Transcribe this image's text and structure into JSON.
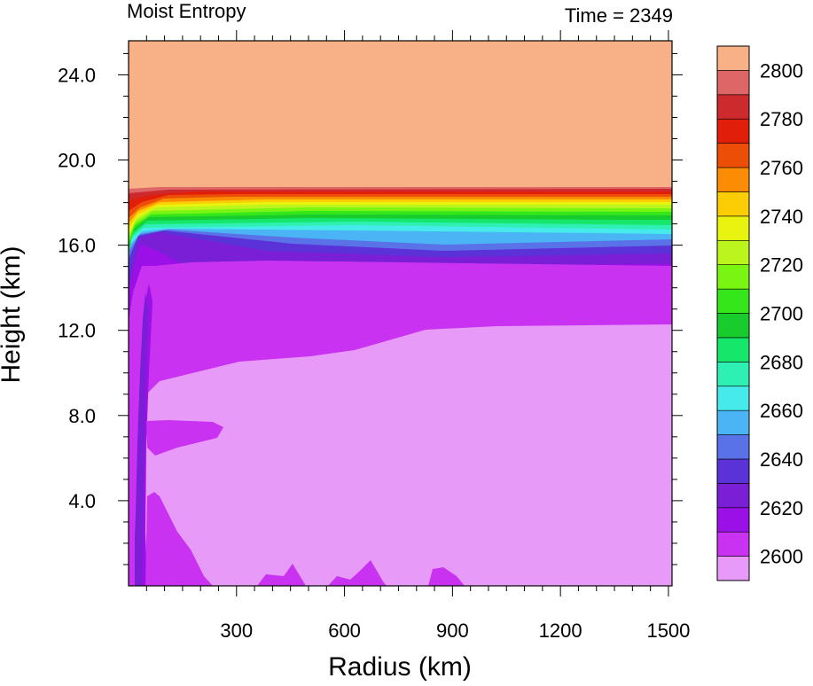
{
  "chart_data": {
    "type": "heatmap",
    "title_left": "Moist Entropy",
    "title_right": "Time = 2349",
    "xlabel": "Radius (km)",
    "ylabel": "Height (km)",
    "xlim": [
      0,
      1510
    ],
    "ylim": [
      0,
      25.6
    ],
    "x_ticks": [
      300,
      600,
      900,
      1200,
      1500
    ],
    "x_tick_labels": [
      "300",
      "600",
      "900",
      "1200",
      "1500"
    ],
    "y_ticks": [
      4,
      8,
      12,
      16,
      20,
      24
    ],
    "y_tick_labels": [
      "4.0",
      "8.0",
      "12.0",
      "16.0",
      "20.0",
      "24.0"
    ],
    "colorbar": {
      "levels": [
        2600,
        2610,
        2620,
        2630,
        2640,
        2650,
        2660,
        2670,
        2680,
        2690,
        2700,
        2710,
        2720,
        2730,
        2740,
        2750,
        2760,
        2770,
        2780,
        2790,
        2800,
        2810
      ],
      "tick_labels": [
        "2600",
        "2620",
        "2640",
        "2660",
        "2680",
        "2700",
        "2720",
        "2740",
        "2760",
        "2780",
        "2800"
      ],
      "tick_values": [
        2600,
        2620,
        2640,
        2660,
        2680,
        2700,
        2720,
        2740,
        2760,
        2780,
        2800
      ],
      "colors": [
        "#e89af8",
        "#c832f0",
        "#9a10e6",
        "#7a1fd6",
        "#5a32d8",
        "#5a72e8",
        "#4ab4f4",
        "#46eaea",
        "#2ef0b2",
        "#16e66a",
        "#18cc2e",
        "#34e61a",
        "#7af412",
        "#bcf41e",
        "#e8f410",
        "#fccc04",
        "#fc8c04",
        "#ec4e08",
        "#e01e0a",
        "#cc2a2c",
        "#de6666",
        "#f8b086"
      ]
    },
    "field": {
      "description_levels": [
        {
          "value": 2810,
          "region": "upper stratosphere above ~18.7 km"
        },
        {
          "value": 2600,
          "region": "mid and lower troposphere away from center"
        },
        {
          "value": 2610,
          "region": "upper troposphere ~10-15 km and eye region"
        },
        {
          "value": 2630,
          "region": "tropopause ~15-16.5 km"
        }
      ]
    }
  }
}
